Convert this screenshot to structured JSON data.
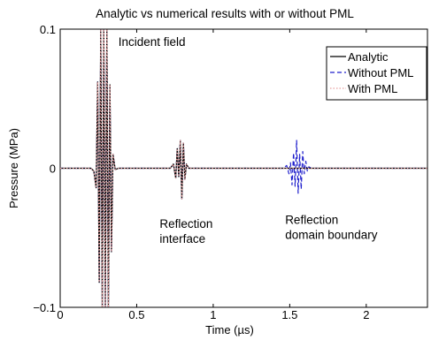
{
  "chart_data": {
    "type": "line",
    "title": "Analytic vs numerical results with or without PML",
    "xlabel": "Time (µs)",
    "ylabel": "Pressure (MPa)",
    "xlim": [
      0,
      2.4
    ],
    "ylim": [
      -0.1,
      0.1
    ],
    "xticks": [
      0,
      0.5,
      1,
      1.5,
      2
    ],
    "xtick_labels": [
      "0",
      "0.5",
      "1",
      "1.5",
      "2"
    ],
    "yticks": [
      -0.1,
      0,
      0.1
    ],
    "ytick_labels": [
      "−0.1",
      "0",
      "0.1"
    ],
    "grid": false,
    "legend_position": "top-right",
    "series": [
      {
        "name": "Analytic",
        "color": "#000000",
        "style": "solid",
        "x": [
          0,
          0.2,
          0.22,
          0.235,
          0.245,
          0.255,
          0.265,
          0.275,
          0.285,
          0.295,
          0.305,
          0.315,
          0.325,
          0.335,
          0.345,
          0.36,
          0.38,
          0.72,
          0.74,
          0.755,
          0.765,
          0.775,
          0.785,
          0.795,
          0.805,
          0.815,
          0.825,
          0.84,
          2.4
        ],
        "y": [
          0,
          0,
          -0.002,
          -0.014,
          0.062,
          -0.082,
          0.1,
          -0.1,
          0.1,
          -0.1,
          0.1,
          -0.1,
          0.06,
          -0.06,
          0.01,
          -0.001,
          0,
          0,
          0.003,
          -0.007,
          0.014,
          -0.006,
          0.02,
          -0.022,
          0.018,
          -0.008,
          0.003,
          0,
          0
        ]
      },
      {
        "name": "Without PML",
        "color": "#1f1fcc",
        "style": "dashed",
        "x": [
          0,
          0.2,
          0.22,
          0.235,
          0.245,
          0.255,
          0.265,
          0.275,
          0.285,
          0.295,
          0.305,
          0.315,
          0.325,
          0.335,
          0.345,
          0.36,
          0.38,
          0.72,
          0.74,
          0.755,
          0.765,
          0.775,
          0.785,
          0.795,
          0.805,
          0.815,
          0.825,
          0.84,
          1.46,
          1.48,
          1.495,
          1.505,
          1.515,
          1.525,
          1.535,
          1.545,
          1.555,
          1.565,
          1.575,
          1.585,
          1.595,
          1.605,
          1.615,
          1.625,
          1.64,
          1.66,
          2.4
        ],
        "y": [
          0,
          0,
          -0.002,
          -0.014,
          0.062,
          -0.082,
          0.1,
          -0.1,
          0.1,
          -0.1,
          0.1,
          -0.1,
          0.06,
          -0.06,
          0.01,
          -0.001,
          0,
          0,
          0.003,
          -0.007,
          0.014,
          -0.006,
          0.02,
          -0.022,
          0.018,
          -0.008,
          0.003,
          0,
          0,
          0.002,
          -0.004,
          0.004,
          -0.012,
          0.011,
          -0.013,
          0.02,
          -0.018,
          0.01,
          -0.015,
          0.012,
          -0.004,
          0.005,
          -0.002,
          0.001,
          0,
          0,
          0
        ]
      },
      {
        "name": "With PML",
        "color": "#e8a0a0",
        "style": "dotted",
        "x": [
          0,
          0.2,
          0.22,
          0.235,
          0.245,
          0.255,
          0.265,
          0.275,
          0.285,
          0.295,
          0.305,
          0.315,
          0.325,
          0.335,
          0.345,
          0.36,
          0.38,
          0.72,
          0.74,
          0.755,
          0.765,
          0.775,
          0.785,
          0.795,
          0.805,
          0.815,
          0.825,
          0.84,
          2.4
        ],
        "y": [
          0,
          0,
          -0.002,
          -0.014,
          0.062,
          -0.082,
          0.1,
          -0.1,
          0.1,
          -0.1,
          0.1,
          -0.1,
          0.06,
          -0.06,
          0.01,
          -0.001,
          0,
          0,
          0.003,
          -0.007,
          0.014,
          -0.006,
          0.02,
          -0.022,
          0.018,
          -0.008,
          0.003,
          0,
          0
        ]
      }
    ],
    "annotations": [
      {
        "lines": [
          "Incident field"
        ],
        "x": 0.38,
        "y": 0.088
      },
      {
        "lines": [
          "Reflection",
          "interface"
        ],
        "x": 0.65,
        "y": -0.043
      },
      {
        "lines": [
          "Reflection",
          "domain boundary"
        ],
        "x": 1.47,
        "y": -0.04
      }
    ]
  }
}
